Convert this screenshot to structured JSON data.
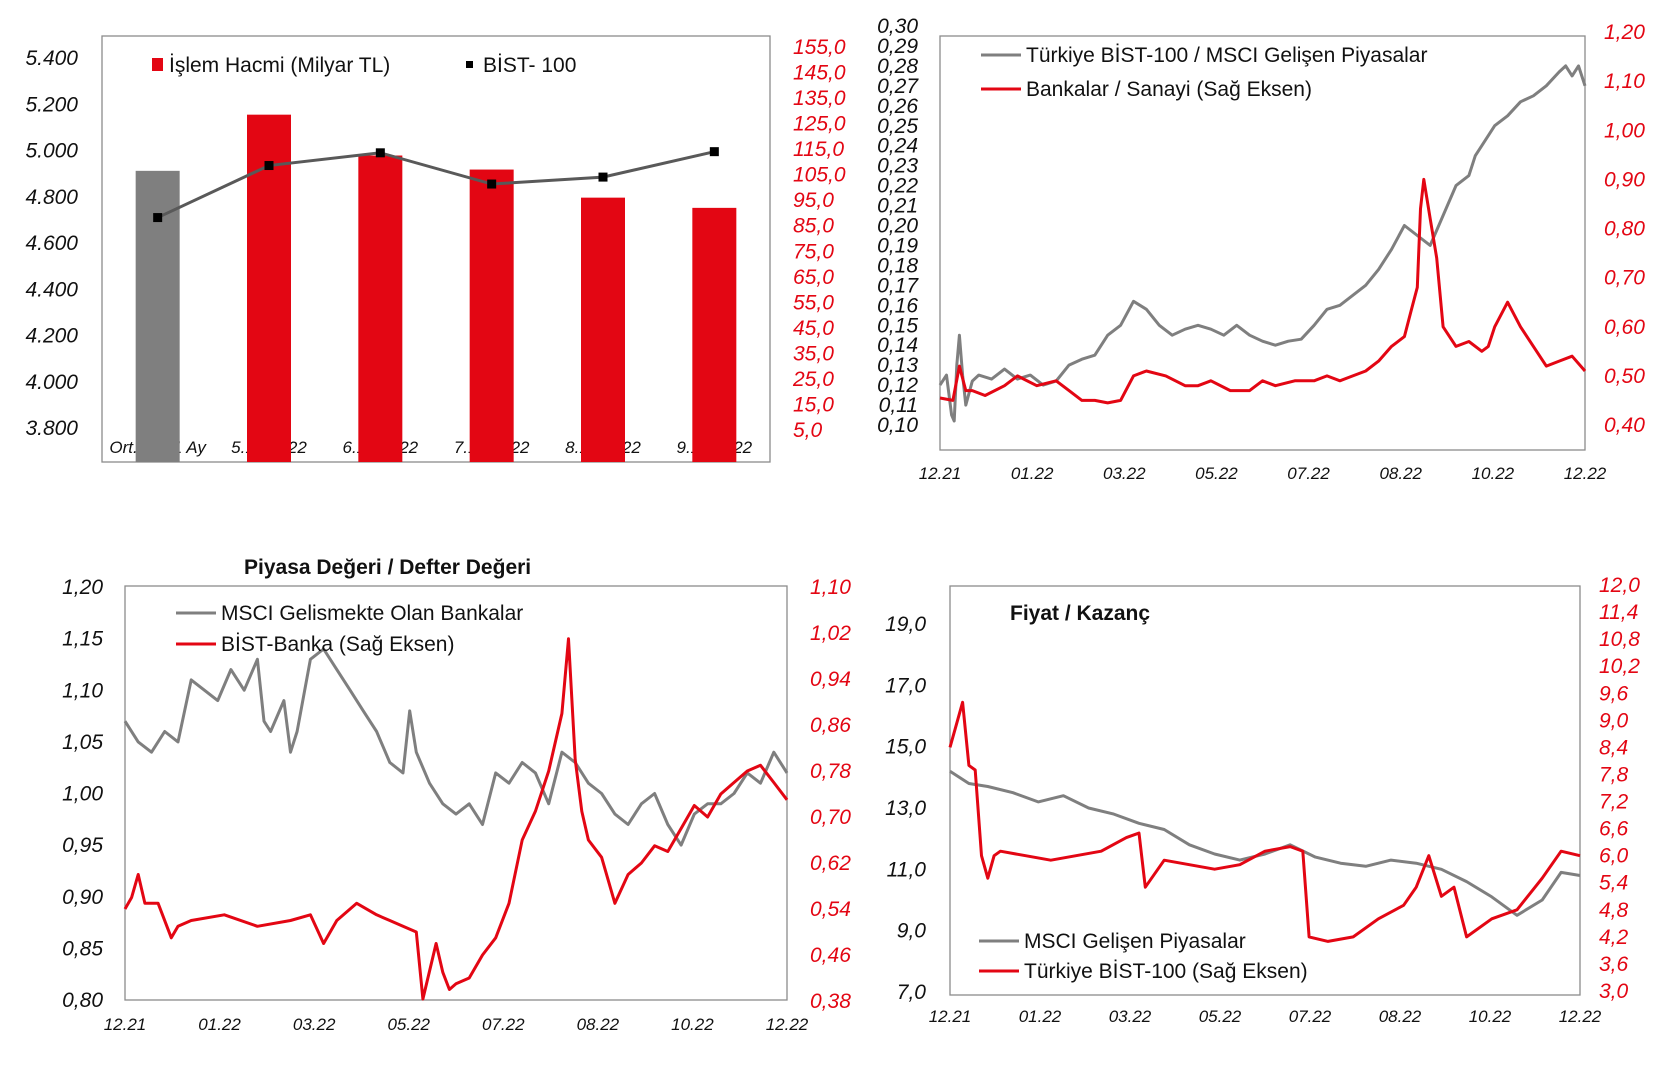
{
  "colors": {
    "red": "#e30613",
    "gray": "#7f7f7f",
    "dark": "#595959",
    "black": "#000000"
  },
  "chart_data": [
    {
      "type": "bar",
      "title": "",
      "categories": [
        "Ort.Son 1 Ay",
        "5.12.2022",
        "6.12.2022",
        "7.12.2022",
        "8.12.2022",
        "9.12.2022"
      ],
      "left_axis": {
        "ticks": [
          "5.400",
          "5.200",
          "5.000",
          "4.800",
          "4.600",
          "4.400",
          "4.200",
          "4.000",
          "3.800"
        ],
        "ylim": [
          3800,
          5500
        ]
      },
      "right_axis": {
        "ticks": [
          "155,0",
          "145,0",
          "135,0",
          "125,0",
          "115,0",
          "105,0",
          "95,0",
          "85,0",
          "75,0",
          "65,0",
          "55,0",
          "45,0",
          "35,0",
          "25,0",
          "15,0",
          "5,0"
        ],
        "ylim": [
          5,
          160
        ]
      },
      "legend_position": "top",
      "series": [
        {
          "name": "İşlem Hacmi (Milyar TL)",
          "axis": "right",
          "style": "bar",
          "values": [
            106.5,
            128.5,
            112.5,
            107.0,
            96.0,
            92.0
          ],
          "bar_colors": [
            "#7f7f7f",
            "#e30613",
            "#e30613",
            "#e30613",
            "#e30613",
            "#e30613"
          ]
        },
        {
          "name": "BİST- 100",
          "axis": "left",
          "style": "line-marker",
          "color": "#595959",
          "values": [
            4710,
            4935,
            4990,
            4855,
            4885,
            4995
          ]
        }
      ]
    },
    {
      "type": "line",
      "title": "",
      "x_ticks": [
        "12.21",
        "01.22",
        "03.22",
        "05.22",
        "07.22",
        "08.22",
        "10.22",
        "12.22"
      ],
      "left_axis": {
        "ticks": [
          "0,30",
          "0,29",
          "0,28",
          "0,27",
          "0,26",
          "0,25",
          "0,24",
          "0,23",
          "0,22",
          "0,21",
          "0,20",
          "0,19",
          "0,18",
          "0,17",
          "0,16",
          "0,15",
          "0,14",
          "0,13",
          "0,12",
          "0,11",
          "0,10"
        ],
        "ylim": [
          0.1,
          0.3
        ]
      },
      "right_axis": {
        "ticks": [
          "1,20",
          "1,10",
          "1,00",
          "0,90",
          "0,80",
          "0,70",
          "0,60",
          "0,50",
          "0,40"
        ],
        "ylim": [
          0.4,
          1.2
        ]
      },
      "legend_position": "top-left",
      "series": [
        {
          "name": "Türkiye BİST-100 / MSCI Gelişen Piyasalar",
          "axis": "left",
          "color": "#7f7f7f",
          "x": [
            0,
            0.01,
            0.018,
            0.022,
            0.026,
            0.03,
            0.035,
            0.04,
            0.05,
            0.06,
            0.08,
            0.1,
            0.12,
            0.14,
            0.16,
            0.18,
            0.2,
            0.22,
            0.24,
            0.26,
            0.28,
            0.3,
            0.32,
            0.34,
            0.36,
            0.38,
            0.4,
            0.42,
            0.44,
            0.46,
            0.48,
            0.5,
            0.52,
            0.54,
            0.56,
            0.58,
            0.6,
            0.62,
            0.64,
            0.66,
            0.68,
            0.7,
            0.72,
            0.74,
            0.76,
            0.78,
            0.8,
            0.82,
            0.83,
            0.84,
            0.86,
            0.88,
            0.9,
            0.92,
            0.94,
            0.96,
            0.97,
            0.98,
            0.99,
            1.0
          ],
          "y": [
            0.12,
            0.125,
            0.105,
            0.102,
            0.13,
            0.145,
            0.125,
            0.11,
            0.122,
            0.125,
            0.123,
            0.128,
            0.123,
            0.125,
            0.12,
            0.122,
            0.13,
            0.133,
            0.135,
            0.145,
            0.15,
            0.162,
            0.158,
            0.15,
            0.145,
            0.148,
            0.15,
            0.148,
            0.145,
            0.15,
            0.145,
            0.142,
            0.14,
            0.142,
            0.143,
            0.15,
            0.158,
            0.16,
            0.165,
            0.17,
            0.178,
            0.188,
            0.2,
            0.195,
            0.19,
            0.205,
            0.22,
            0.225,
            0.235,
            0.24,
            0.25,
            0.255,
            0.262,
            0.265,
            0.27,
            0.277,
            0.28,
            0.275,
            0.28,
            0.27
          ]
        },
        {
          "name": "Bankalar / Sanayi (Sağ Eksen)",
          "axis": "right",
          "color": "#e30613",
          "x": [
            0,
            0.02,
            0.03,
            0.04,
            0.05,
            0.07,
            0.1,
            0.12,
            0.15,
            0.18,
            0.2,
            0.22,
            0.24,
            0.26,
            0.28,
            0.3,
            0.32,
            0.35,
            0.38,
            0.4,
            0.42,
            0.45,
            0.48,
            0.5,
            0.52,
            0.55,
            0.58,
            0.6,
            0.62,
            0.64,
            0.66,
            0.68,
            0.7,
            0.72,
            0.73,
            0.74,
            0.745,
            0.75,
            0.76,
            0.77,
            0.78,
            0.8,
            0.82,
            0.84,
            0.85,
            0.86,
            0.88,
            0.9,
            0.92,
            0.94,
            0.96,
            0.98,
            1.0
          ],
          "y": [
            0.455,
            0.45,
            0.52,
            0.47,
            0.47,
            0.46,
            0.48,
            0.5,
            0.48,
            0.49,
            0.47,
            0.45,
            0.45,
            0.445,
            0.45,
            0.5,
            0.51,
            0.5,
            0.48,
            0.48,
            0.49,
            0.47,
            0.47,
            0.49,
            0.48,
            0.49,
            0.49,
            0.5,
            0.49,
            0.5,
            0.51,
            0.53,
            0.56,
            0.58,
            0.63,
            0.68,
            0.84,
            0.9,
            0.82,
            0.74,
            0.6,
            0.56,
            0.57,
            0.55,
            0.56,
            0.6,
            0.65,
            0.6,
            0.56,
            0.52,
            0.53,
            0.54,
            0.51
          ]
        }
      ]
    },
    {
      "type": "line",
      "title": "Piyasa Değeri / Defter Değeri",
      "x_ticks": [
        "12.21",
        "01.22",
        "03.22",
        "05.22",
        "07.22",
        "08.22",
        "10.22",
        "12.22"
      ],
      "left_axis": {
        "ticks": [
          "1,20",
          "1,15",
          "1,10",
          "1,05",
          "1,00",
          "0,95",
          "0,90",
          "0,85",
          "0,80"
        ],
        "ylim": [
          0.8,
          1.2
        ]
      },
      "right_axis": {
        "ticks": [
          "1,10",
          "1,02",
          "0,94",
          "0,86",
          "0,78",
          "0,70",
          "0,62",
          "0,54",
          "0,46",
          "0,38"
        ],
        "ylim": [
          0.38,
          1.1
        ]
      },
      "legend_position": "top-left",
      "series": [
        {
          "name": "MSCI Gelismekte Olan Bankalar",
          "axis": "left",
          "color": "#7f7f7f",
          "x": [
            0,
            0.02,
            0.04,
            0.06,
            0.08,
            0.09,
            0.1,
            0.12,
            0.14,
            0.16,
            0.18,
            0.2,
            0.21,
            0.22,
            0.24,
            0.25,
            0.26,
            0.28,
            0.3,
            0.32,
            0.34,
            0.36,
            0.38,
            0.4,
            0.42,
            0.43,
            0.44,
            0.46,
            0.48,
            0.5,
            0.52,
            0.54,
            0.56,
            0.58,
            0.6,
            0.62,
            0.64,
            0.66,
            0.68,
            0.7,
            0.72,
            0.74,
            0.76,
            0.78,
            0.8,
            0.82,
            0.84,
            0.86,
            0.88,
            0.9,
            0.92,
            0.94,
            0.96,
            0.98,
            1.0
          ],
          "y": [
            1.07,
            1.05,
            1.04,
            1.06,
            1.05,
            1.08,
            1.11,
            1.1,
            1.09,
            1.12,
            1.1,
            1.13,
            1.07,
            1.06,
            1.09,
            1.04,
            1.06,
            1.13,
            1.14,
            1.12,
            1.1,
            1.08,
            1.06,
            1.03,
            1.02,
            1.08,
            1.04,
            1.01,
            0.99,
            0.98,
            0.99,
            0.97,
            1.02,
            1.01,
            1.03,
            1.02,
            0.99,
            1.04,
            1.03,
            1.01,
            1.0,
            0.98,
            0.97,
            0.99,
            1.0,
            0.97,
            0.95,
            0.98,
            0.99,
            0.99,
            1.0,
            1.02,
            1.01,
            1.04,
            1.02
          ]
        },
        {
          "name": "BİST-Banka (Sağ Eksen)",
          "axis": "right",
          "color": "#e30613",
          "x": [
            0,
            0.01,
            0.02,
            0.03,
            0.05,
            0.07,
            0.08,
            0.1,
            0.15,
            0.2,
            0.25,
            0.28,
            0.3,
            0.32,
            0.35,
            0.38,
            0.4,
            0.42,
            0.44,
            0.45,
            0.47,
            0.48,
            0.49,
            0.5,
            0.52,
            0.54,
            0.56,
            0.58,
            0.6,
            0.62,
            0.64,
            0.66,
            0.67,
            0.68,
            0.69,
            0.7,
            0.72,
            0.74,
            0.76,
            0.78,
            0.8,
            0.82,
            0.84,
            0.86,
            0.88,
            0.9,
            0.92,
            0.94,
            0.96,
            0.98,
            1.0
          ],
          "y": [
            0.54,
            0.56,
            0.6,
            0.55,
            0.55,
            0.49,
            0.51,
            0.52,
            0.53,
            0.51,
            0.52,
            0.53,
            0.48,
            0.52,
            0.55,
            0.53,
            0.52,
            0.51,
            0.5,
            0.38,
            0.48,
            0.43,
            0.4,
            0.41,
            0.42,
            0.46,
            0.49,
            0.55,
            0.66,
            0.71,
            0.78,
            0.88,
            1.01,
            0.8,
            0.71,
            0.66,
            0.63,
            0.55,
            0.6,
            0.62,
            0.65,
            0.64,
            0.68,
            0.72,
            0.7,
            0.74,
            0.76,
            0.78,
            0.79,
            0.76,
            0.73
          ]
        }
      ]
    },
    {
      "type": "line",
      "title": "Fiyat / Kazanç",
      "x_ticks": [
        "12.21",
        "01.22",
        "03.22",
        "05.22",
        "07.22",
        "08.22",
        "10.22",
        "12.22"
      ],
      "left_axis": {
        "ticks": [
          "19,0",
          "17,0",
          "15,0",
          "13,0",
          "11,0",
          "9,0",
          "7,0"
        ],
        "ylim": [
          7.0,
          20.0
        ]
      },
      "right_axis": {
        "ticks": [
          "12,0",
          "11,4",
          "10,8",
          "10,2",
          "9,6",
          "9,0",
          "8,4",
          "7,8",
          "7,2",
          "6,6",
          "6,0",
          "5,4",
          "4,8",
          "4,2",
          "3,6",
          "3,0"
        ],
        "ylim": [
          3.0,
          12.0
        ]
      },
      "legend_position": "bottom-left",
      "series": [
        {
          "name": "MSCI Gelişen Piyasalar",
          "axis": "left",
          "color": "#7f7f7f",
          "x": [
            0,
            0.03,
            0.06,
            0.1,
            0.14,
            0.18,
            0.22,
            0.26,
            0.3,
            0.34,
            0.38,
            0.42,
            0.46,
            0.5,
            0.54,
            0.58,
            0.62,
            0.66,
            0.7,
            0.74,
            0.78,
            0.82,
            0.86,
            0.9,
            0.94,
            0.97,
            1.0
          ],
          "y": [
            14.2,
            13.8,
            13.7,
            13.5,
            13.2,
            13.4,
            13.0,
            12.8,
            12.5,
            12.3,
            11.8,
            11.5,
            11.3,
            11.5,
            11.8,
            11.4,
            11.2,
            11.1,
            11.3,
            11.2,
            11.0,
            10.6,
            10.1,
            9.5,
            10.0,
            10.9,
            10.8
          ]
        },
        {
          "name": "Türkiye BİST-100 (Sağ Eksen)",
          "axis": "right",
          "color": "#e30613",
          "x": [
            0,
            0.02,
            0.03,
            0.04,
            0.05,
            0.06,
            0.07,
            0.08,
            0.12,
            0.16,
            0.2,
            0.24,
            0.28,
            0.3,
            0.31,
            0.34,
            0.38,
            0.42,
            0.46,
            0.5,
            0.54,
            0.56,
            0.57,
            0.6,
            0.64,
            0.68,
            0.72,
            0.74,
            0.76,
            0.78,
            0.8,
            0.82,
            0.86,
            0.9,
            0.94,
            0.97,
            1.0
          ],
          "y": [
            8.4,
            9.4,
            8.0,
            7.9,
            6.0,
            5.5,
            6.0,
            6.1,
            6.0,
            5.9,
            6.0,
            6.1,
            6.4,
            6.5,
            5.3,
            5.9,
            5.8,
            5.7,
            5.8,
            6.1,
            6.2,
            6.1,
            4.2,
            4.1,
            4.2,
            4.6,
            4.9,
            5.3,
            6.0,
            5.1,
            5.3,
            4.2,
            4.6,
            4.8,
            5.5,
            6.1,
            6.0
          ]
        }
      ]
    }
  ]
}
